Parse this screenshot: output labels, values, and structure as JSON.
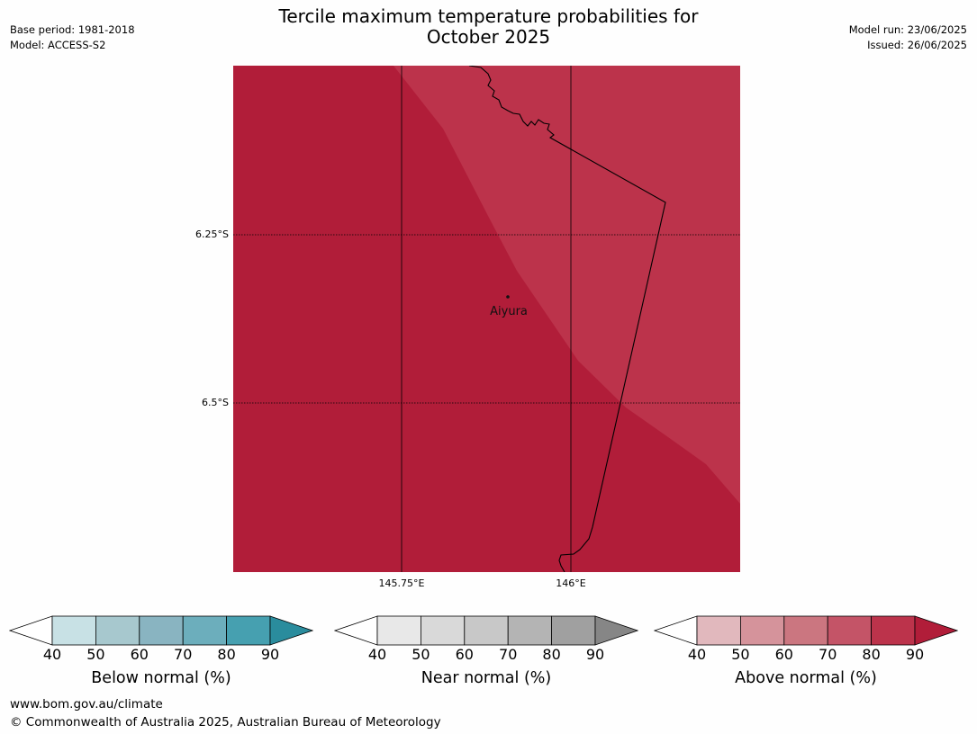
{
  "header": {
    "title_line1": "Tercile maximum temperature probabilities for",
    "title_line2": "October 2025",
    "base_period": "Base period: 1981-2018",
    "model": "Model: ACCESS-S2",
    "model_run": "Model run: 23/06/2025",
    "issued": "Issued: 26/06/2025"
  },
  "map": {
    "lat_ticks": [
      "6.25°S",
      "6.5°S"
    ],
    "lon_ticks": [
      "145.75°E",
      "146°E"
    ],
    "place": {
      "name": "Aiyura"
    },
    "colors": {
      "dominant": "#b11d39",
      "lighter_region": "#bc334b",
      "coastline": "#000000",
      "gridline": "#000000"
    }
  },
  "legends": [
    {
      "label": "Below normal (%)",
      "ticks": [
        "40",
        "50",
        "60",
        "70",
        "80",
        "90"
      ],
      "colors": [
        "#ffffff",
        "#c8e1e5",
        "#a7c8ce",
        "#89b4c1",
        "#6caebc",
        "#46a0b0",
        "#2a8c9d"
      ]
    },
    {
      "label": "Near normal (%)",
      "ticks": [
        "40",
        "50",
        "60",
        "70",
        "80",
        "90"
      ],
      "colors": [
        "#ffffff",
        "#e8e8e8",
        "#d9d9d9",
        "#c8c8c8",
        "#b4b4b4",
        "#a0a0a0",
        "#868686"
      ]
    },
    {
      "label": "Above normal (%)",
      "ticks": [
        "40",
        "50",
        "60",
        "70",
        "80",
        "90"
      ],
      "colors": [
        "#ffffff",
        "#e1b8bd",
        "#d5939b",
        "#cb7680",
        "#c45467",
        "#bc334b",
        "#b11d39"
      ]
    }
  ],
  "footer": {
    "website": "www.bom.gov.au/climate",
    "copyright": "© Commonwealth of Australia 2025, Australian Bureau of Meteorology"
  }
}
